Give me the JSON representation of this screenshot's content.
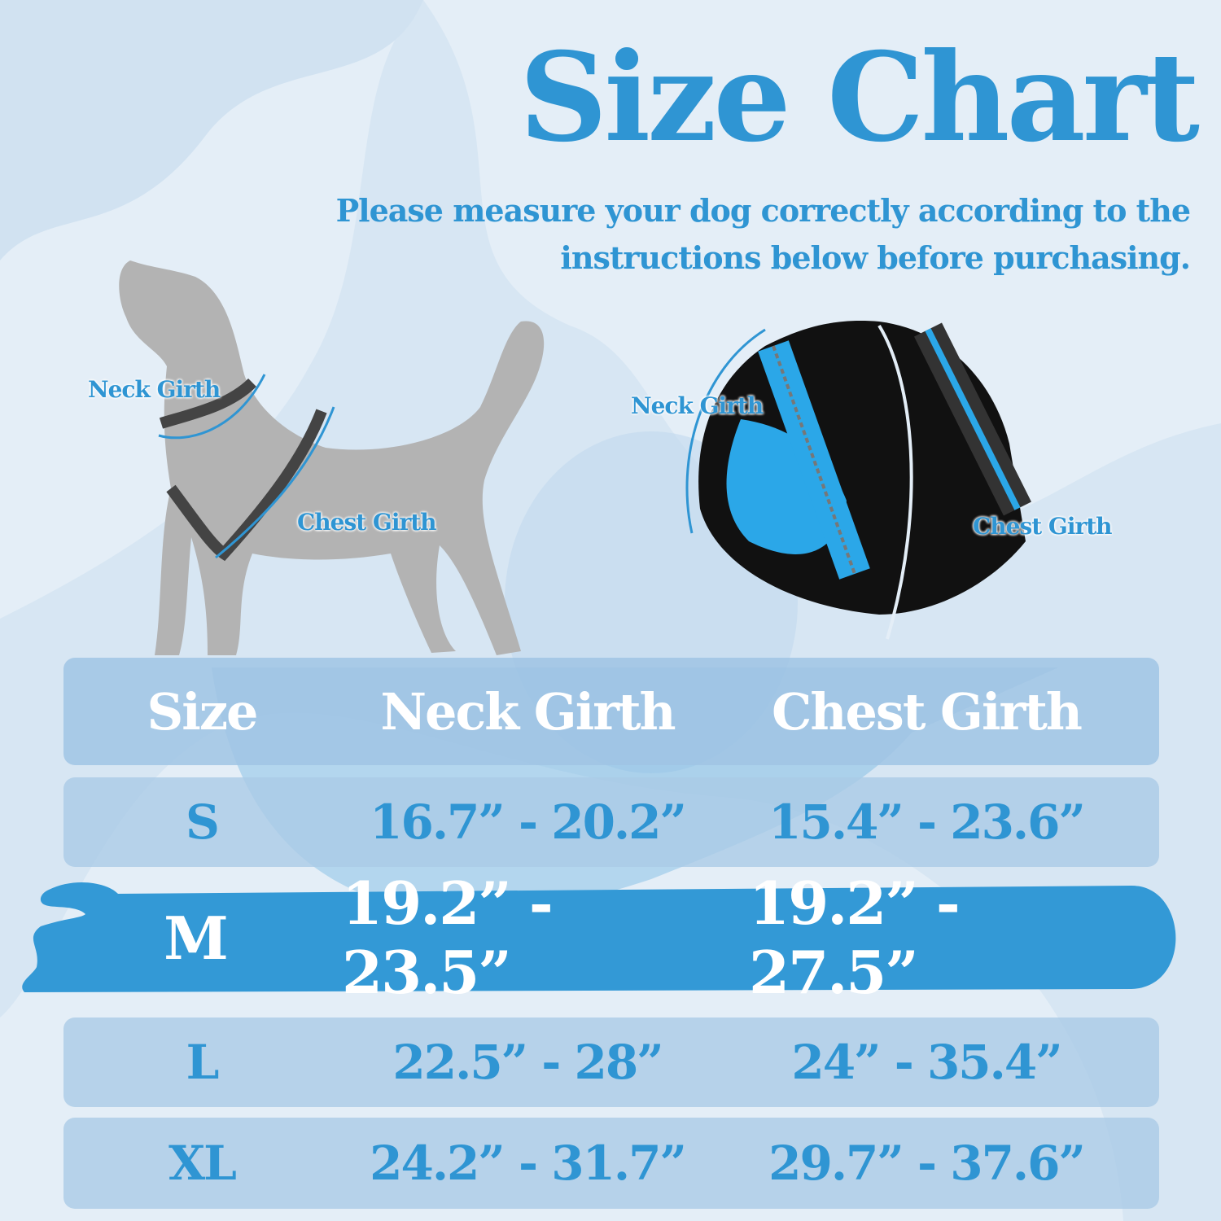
{
  "title": "Size Chart",
  "subtitle": [
    "Please measure your dog correctly according to the",
    "instructions below before purchasing."
  ],
  "dog_labels": {
    "neck": "Neck Girth",
    "chest": "Chest Girth"
  },
  "harness_labels": {
    "neck": "Neck Girth",
    "chest": "Chest Girth"
  },
  "colors": {
    "accent": "#2f95d3",
    "row_bg": "#aacae6",
    "background": "#e4eef7"
  },
  "table": {
    "headers": [
      "Size",
      "Neck Girth",
      "Chest Girth"
    ],
    "rows": [
      {
        "size": "S",
        "neck": "16.7” - 20.2”",
        "chest": "15.4” - 23.6”"
      },
      {
        "size": "M",
        "neck": "19.2” - 23.5”",
        "chest": "19.2” - 27.5”",
        "highlighted": true
      },
      {
        "size": "L",
        "neck": "22.5” - 28”",
        "chest": "24” - 35.4”"
      },
      {
        "size": "XL",
        "neck": "24.2” - 31.7”",
        "chest": "29.7” - 37.6”"
      }
    ]
  }
}
